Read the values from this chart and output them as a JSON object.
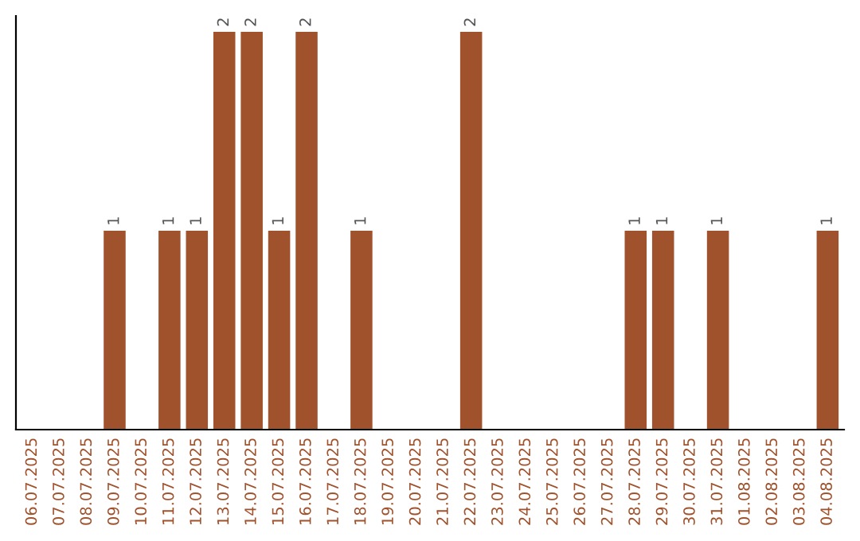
{
  "chart_data": {
    "type": "bar",
    "categories": [
      "06.07.2025",
      "07.07.2025",
      "08.07.2025",
      "09.07.2025",
      "10.07.2025",
      "11.07.2025",
      "12.07.2025",
      "13.07.2025",
      "14.07.2025",
      "15.07.2025",
      "16.07.2025",
      "17.07.2025",
      "18.07.2025",
      "19.07.2025",
      "20.07.2025",
      "21.07.2025",
      "22.07.2025",
      "23.07.2025",
      "24.07.2025",
      "25.07.2025",
      "26.07.2025",
      "27.07.2025",
      "28.07.2025",
      "29.07.2025",
      "30.07.2025",
      "31.07.2025",
      "01.08.2025",
      "02.08.2025",
      "03.08.2025",
      "04.08.2025"
    ],
    "values": [
      null,
      null,
      null,
      1,
      null,
      1,
      1,
      2,
      2,
      1,
      2,
      null,
      1,
      null,
      null,
      null,
      2,
      null,
      null,
      null,
      null,
      null,
      1,
      1,
      null,
      1,
      null,
      null,
      null,
      1
    ],
    "color": "#a0522d",
    "data_labels": true,
    "grid": false,
    "legend": false
  }
}
